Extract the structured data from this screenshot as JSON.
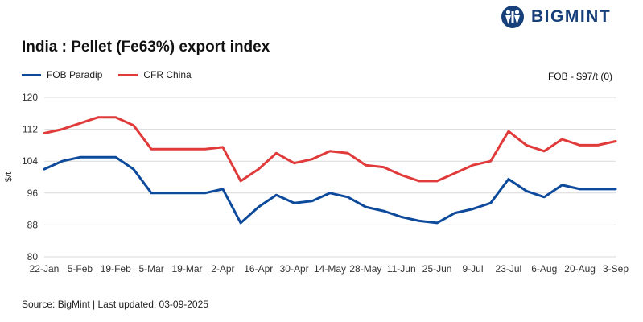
{
  "brand": {
    "name": "BIGMINT",
    "color": "#17407a",
    "icon": "bigmint-logo-icon"
  },
  "title": "India : Pellet (Fe63%) export index",
  "note": "FOB - $97/t (0)",
  "source": "Source: BigMint | Last updated: 03-09-2025",
  "legend": [
    {
      "label": "FOB Paradip",
      "color": "#0d4a9c"
    },
    {
      "label": "CFR China",
      "color": "#e03a3a"
    }
  ],
  "chart_data": {
    "type": "line",
    "ylabel": "$/t",
    "ylim": [
      80,
      120
    ],
    "yticks": [
      80,
      88,
      96,
      104,
      112,
      120
    ],
    "grid": true,
    "legend_position": "top-left",
    "x_tick_labels": [
      "22-Jan",
      "5-Feb",
      "19-Feb",
      "5-Mar",
      "19-Mar",
      "2-Apr",
      "16-Apr",
      "30-Apr",
      "14-May",
      "28-May",
      "11-Jun",
      "25-Jun",
      "9-Jul",
      "23-Jul",
      "6-Aug",
      "20-Aug",
      "3-Sep"
    ],
    "x": [
      "22-Jan",
      "29-Jan",
      "5-Feb",
      "12-Feb",
      "19-Feb",
      "26-Feb",
      "5-Mar",
      "12-Mar",
      "19-Mar",
      "26-Mar",
      "2-Apr",
      "9-Apr",
      "16-Apr",
      "23-Apr",
      "30-Apr",
      "7-May",
      "14-May",
      "21-May",
      "28-May",
      "4-Jun",
      "11-Jun",
      "18-Jun",
      "25-Jun",
      "2-Jul",
      "9-Jul",
      "16-Jul",
      "23-Jul",
      "30-Jul",
      "6-Aug",
      "13-Aug",
      "20-Aug",
      "27-Aug",
      "3-Sep"
    ],
    "series": [
      {
        "name": "FOB Paradip",
        "color": "#0d4a9c",
        "values": [
          102,
          104,
          105,
          105,
          105,
          102,
          96,
          96,
          96,
          96,
          97,
          88.5,
          92.5,
          95.5,
          93.5,
          94,
          96,
          95,
          92.5,
          91.5,
          90,
          89,
          88.5,
          91,
          92,
          93.5,
          99.5,
          96.5,
          95,
          98,
          97,
          97,
          97
        ]
      },
      {
        "name": "CFR China",
        "color": "#e03a3a",
        "values": [
          111,
          112,
          113.5,
          115,
          115,
          113,
          107,
          107,
          107,
          107,
          107.5,
          99,
          102,
          106,
          103.5,
          104.5,
          106.5,
          106,
          103,
          102.5,
          100.5,
          99,
          99,
          101,
          103,
          104,
          111.5,
          108,
          106.5,
          109.5,
          108,
          108,
          109
        ]
      }
    ]
  }
}
